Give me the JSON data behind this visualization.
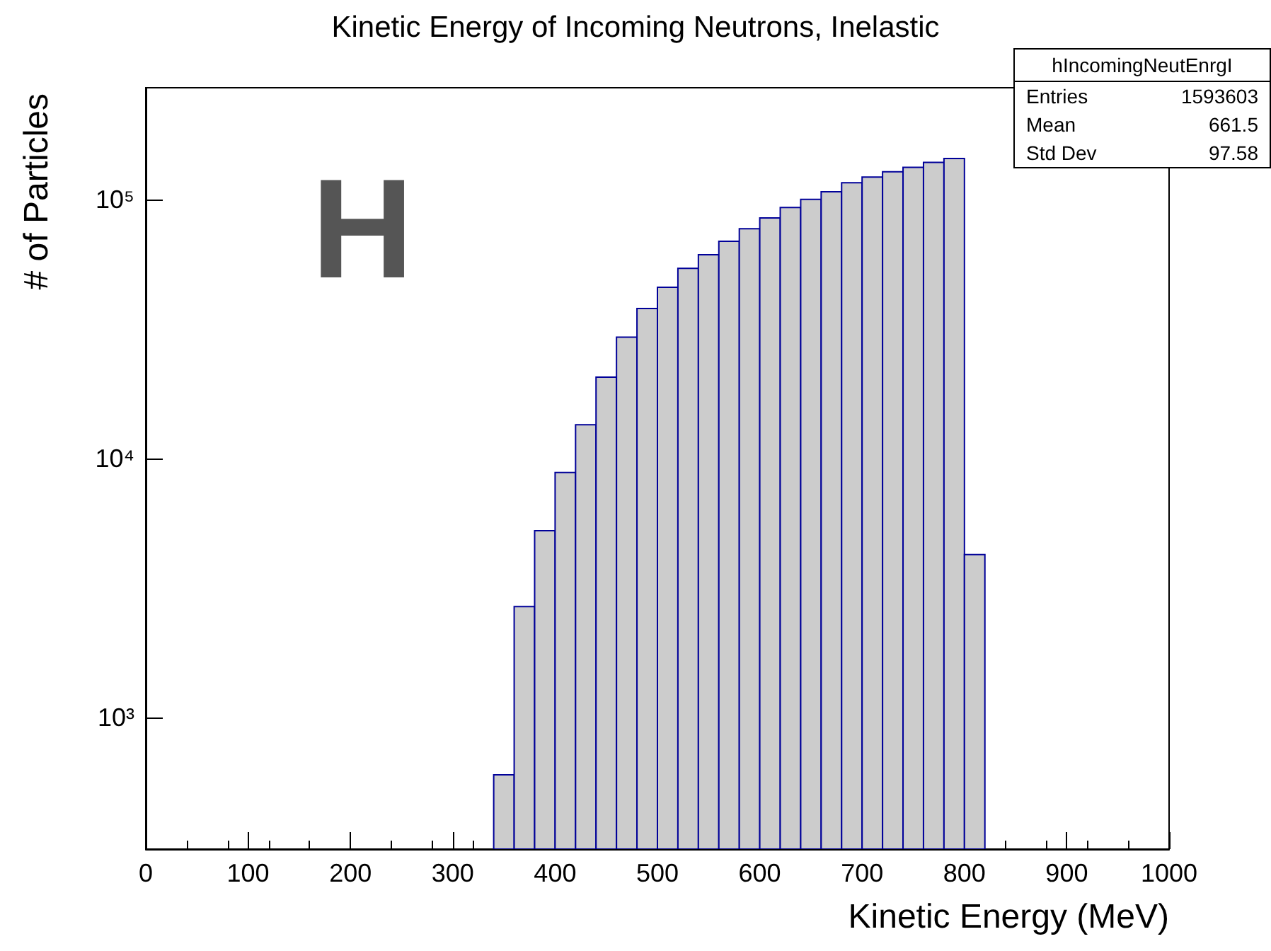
{
  "chart_data": {
    "type": "histogram",
    "title": "Kinetic Energy of Incoming Neutrons, Inelastic",
    "xlabel": "Kinetic Energy (MeV)",
    "ylabel": "# of Particles",
    "bins": [
      340,
      360,
      380,
      400,
      420,
      440,
      460,
      480,
      500,
      520,
      540,
      560,
      580,
      600,
      620,
      640,
      660,
      680,
      700,
      720,
      740,
      760,
      780,
      800,
      820
    ],
    "values": [
      600,
      2680,
      5260,
      8820,
      13500,
      20600,
      29400,
      37900,
      45800,
      54200,
      61200,
      68900,
      77100,
      84900,
      93100,
      100000,
      107000,
      116000,
      122000,
      128000,
      133000,
      139000,
      144000,
      4250
    ],
    "color": "#cccccc",
    "xlim": [
      0,
      1000
    ],
    "xticks": [
      0,
      100,
      200,
      300,
      400,
      500,
      600,
      700,
      800,
      900,
      1000
    ],
    "ylim": [
      310,
      270000
    ],
    "yticks": [
      {
        "value": 1000,
        "label": "10³"
      },
      {
        "value": 10000,
        "label": "10⁴"
      },
      {
        "value": 100000,
        "label": "10⁵"
      }
    ],
    "log": "y",
    "grid": false,
    "annotations": [
      "H",
      "hIncomingNeutEnrgI",
      "Entries 1593603",
      "Mean 661.5",
      "Std Dev 97.58"
    ]
  }
}
